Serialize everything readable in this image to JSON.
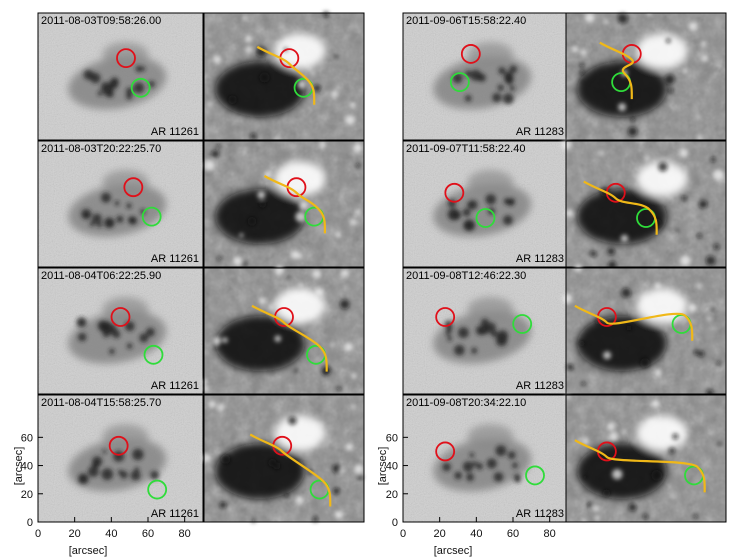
{
  "figure": {
    "colors": {
      "red_circle": "#e0101a",
      "green_circle": "#2fdc3a",
      "pil": "#f0b818"
    },
    "groups": [
      {
        "region": "AR 11261",
        "rows": [
          {
            "time": "2011-08-03T09:58:26.00",
            "red_circle": [
              48,
              58
            ],
            "green_circle": [
              56,
              37
            ]
          },
          {
            "time": "2011-08-03T20:22:25.70",
            "red_circle": [
              52,
              57
            ],
            "green_circle": [
              62,
              36
            ]
          },
          {
            "time": "2011-08-04T06:22:25.90",
            "red_circle": [
              45,
              55
            ],
            "green_circle": [
              63,
              28
            ]
          },
          {
            "time": "2011-08-04T15:58:25.70",
            "red_circle": [
              44,
              54
            ],
            "green_circle": [
              65,
              23
            ]
          }
        ]
      },
      {
        "region": "AR 11283",
        "rows": [
          {
            "time": "2011-09-06T15:58:22.40",
            "red_circle": [
              37,
              61
            ],
            "green_circle": [
              31,
              41
            ]
          },
          {
            "time": "2011-09-07T11:58:22.40",
            "red_circle": [
              28,
              53
            ],
            "green_circle": [
              45,
              35
            ]
          },
          {
            "time": "2011-09-08T12:46:22.30",
            "red_circle": [
              23,
              55
            ],
            "green_circle": [
              65,
              50
            ]
          },
          {
            "time": "2011-09-08T20:34:22.10",
            "red_circle": [
              23,
              50
            ],
            "green_circle": [
              72,
              33
            ]
          }
        ]
      }
    ],
    "axes": {
      "x_ticks": [
        "0",
        "20",
        "40",
        "60",
        "80"
      ],
      "y_ticks": [
        "0",
        "20",
        "40",
        "60"
      ],
      "x_label": "[arcsec]",
      "y_label": "[arcsec]",
      "range": [
        0,
        90
      ]
    }
  }
}
